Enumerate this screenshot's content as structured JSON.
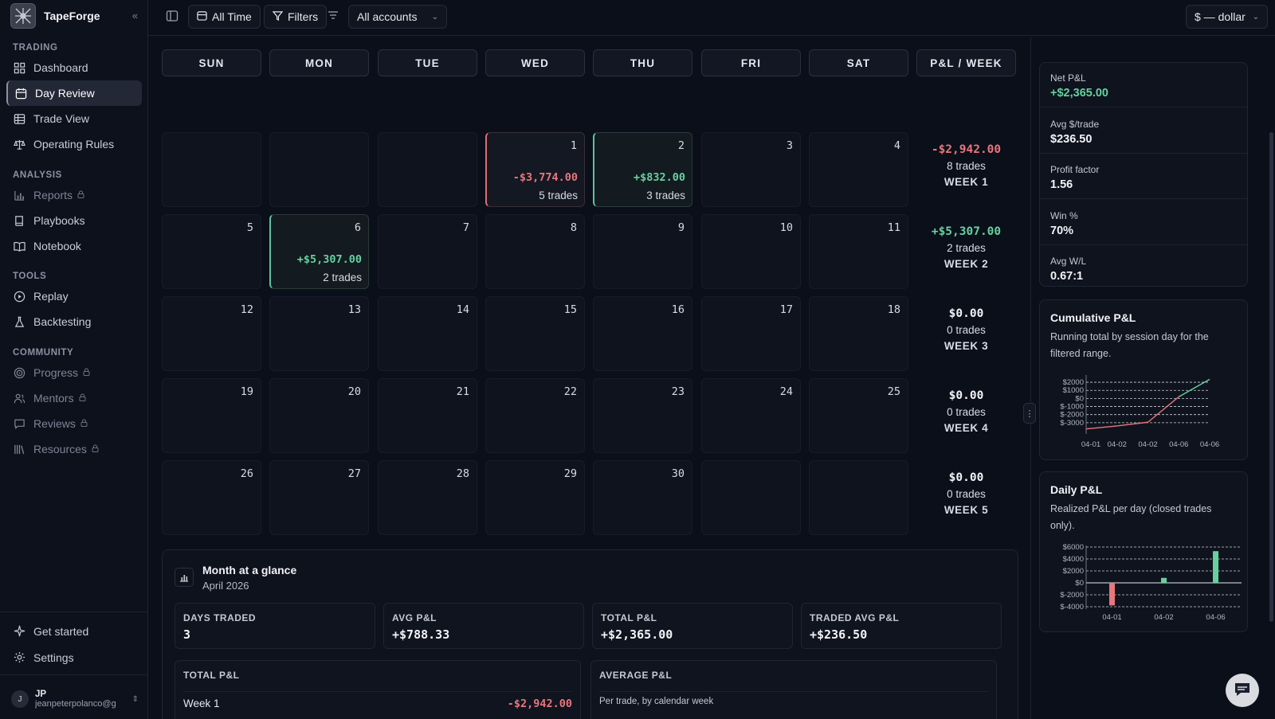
{
  "brand": {
    "name": "TapeForge"
  },
  "sidebar": {
    "sections": [
      {
        "heading": "TRADING",
        "items": [
          {
            "label": "Dashboard",
            "icon": "grid-icon",
            "locked": false,
            "active": false
          },
          {
            "label": "Day Review",
            "icon": "calendar-icon",
            "locked": false,
            "active": true
          },
          {
            "label": "Trade View",
            "icon": "table-icon",
            "locked": false,
            "active": false
          },
          {
            "label": "Operating Rules",
            "icon": "scale-icon",
            "locked": false,
            "active": false
          }
        ]
      },
      {
        "heading": "ANALYSIS",
        "items": [
          {
            "label": "Reports",
            "icon": "bar-chart-icon",
            "locked": true,
            "active": false
          },
          {
            "label": "Playbooks",
            "icon": "book-icon",
            "locked": false,
            "active": false
          },
          {
            "label": "Notebook",
            "icon": "open-book-icon",
            "locked": false,
            "active": false
          }
        ]
      },
      {
        "heading": "TOOLS",
        "items": [
          {
            "label": "Replay",
            "icon": "play-circle-icon",
            "locked": false,
            "active": false
          },
          {
            "label": "Backtesting",
            "icon": "flask-icon",
            "locked": false,
            "active": false
          }
        ]
      },
      {
        "heading": "COMMUNITY",
        "items": [
          {
            "label": "Progress",
            "icon": "target-icon",
            "locked": true,
            "active": false
          },
          {
            "label": "Mentors",
            "icon": "users-icon",
            "locked": true,
            "active": false
          },
          {
            "label": "Reviews",
            "icon": "message-icon",
            "locked": true,
            "active": false
          },
          {
            "label": "Resources",
            "icon": "library-icon",
            "locked": true,
            "active": false
          }
        ]
      }
    ],
    "footer": [
      {
        "label": "Get started",
        "icon": "sparkle-icon"
      },
      {
        "label": "Settings",
        "icon": "gear-icon"
      }
    ],
    "user": {
      "avatar": "J",
      "initials": "JP",
      "email": "jeanpeterpolanco@g"
    }
  },
  "topbar": {
    "range_label": "All Time",
    "filters_label": "Filters",
    "accounts_label": "All accounts",
    "currency_label": "$ — dollar"
  },
  "calendar": {
    "weekdays": [
      "SUN",
      "MON",
      "TUE",
      "WED",
      "THU",
      "FRI",
      "SAT"
    ],
    "week_header": "P&L / WEEK",
    "weeks": [
      {
        "days": [
          {
            "num": "",
            "pnl": "",
            "trades": "",
            "state": "empty"
          },
          {
            "num": "",
            "pnl": "",
            "trades": "",
            "state": "empty"
          },
          {
            "num": "",
            "pnl": "",
            "trades": "",
            "state": "empty"
          },
          {
            "num": "1",
            "pnl": "-$3,774.00",
            "trades": "5 trades",
            "state": "loss"
          },
          {
            "num": "2",
            "pnl": "+$832.00",
            "trades": "3 trades",
            "state": "win"
          },
          {
            "num": "3",
            "pnl": "",
            "trades": "",
            "state": "none"
          },
          {
            "num": "4",
            "pnl": "",
            "trades": "",
            "state": "none"
          }
        ],
        "summary": {
          "pnl": "-$2,942.00",
          "trades": "8 trades",
          "label": "WEEK 1",
          "state": "loss"
        }
      },
      {
        "days": [
          {
            "num": "5",
            "pnl": "",
            "trades": "",
            "state": "none"
          },
          {
            "num": "6",
            "pnl": "+$5,307.00",
            "trades": "2 trades",
            "state": "win"
          },
          {
            "num": "7",
            "pnl": "",
            "trades": "",
            "state": "none"
          },
          {
            "num": "8",
            "pnl": "",
            "trades": "",
            "state": "none"
          },
          {
            "num": "9",
            "pnl": "",
            "trades": "",
            "state": "none"
          },
          {
            "num": "10",
            "pnl": "",
            "trades": "",
            "state": "none"
          },
          {
            "num": "11",
            "pnl": "",
            "trades": "",
            "state": "none"
          }
        ],
        "summary": {
          "pnl": "+$5,307.00",
          "trades": "2 trades",
          "label": "WEEK 2",
          "state": "win"
        }
      },
      {
        "days": [
          {
            "num": "12",
            "pnl": "",
            "trades": "",
            "state": "none"
          },
          {
            "num": "13",
            "pnl": "",
            "trades": "",
            "state": "none"
          },
          {
            "num": "14",
            "pnl": "",
            "trades": "",
            "state": "none"
          },
          {
            "num": "15",
            "pnl": "",
            "trades": "",
            "state": "none"
          },
          {
            "num": "16",
            "pnl": "",
            "trades": "",
            "state": "none"
          },
          {
            "num": "17",
            "pnl": "",
            "trades": "",
            "state": "none"
          },
          {
            "num": "18",
            "pnl": "",
            "trades": "",
            "state": "none"
          }
        ],
        "summary": {
          "pnl": "$0.00",
          "trades": "0 trades",
          "label": "WEEK 3",
          "state": "flat"
        }
      },
      {
        "days": [
          {
            "num": "19",
            "pnl": "",
            "trades": "",
            "state": "none"
          },
          {
            "num": "20",
            "pnl": "",
            "trades": "",
            "state": "none"
          },
          {
            "num": "21",
            "pnl": "",
            "trades": "",
            "state": "none"
          },
          {
            "num": "22",
            "pnl": "",
            "trades": "",
            "state": "none"
          },
          {
            "num": "23",
            "pnl": "",
            "trades": "",
            "state": "none"
          },
          {
            "num": "24",
            "pnl": "",
            "trades": "",
            "state": "none"
          },
          {
            "num": "25",
            "pnl": "",
            "trades": "",
            "state": "none"
          }
        ],
        "summary": {
          "pnl": "$0.00",
          "trades": "0 trades",
          "label": "WEEK 4",
          "state": "flat"
        }
      },
      {
        "days": [
          {
            "num": "26",
            "pnl": "",
            "trades": "",
            "state": "none"
          },
          {
            "num": "27",
            "pnl": "",
            "trades": "",
            "state": "none"
          },
          {
            "num": "28",
            "pnl": "",
            "trades": "",
            "state": "none"
          },
          {
            "num": "29",
            "pnl": "",
            "trades": "",
            "state": "none"
          },
          {
            "num": "30",
            "pnl": "",
            "trades": "",
            "state": "none"
          },
          {
            "num": "",
            "pnl": "",
            "trades": "",
            "state": "empty"
          },
          {
            "num": "",
            "pnl": "",
            "trades": "",
            "state": "empty"
          }
        ],
        "summary": {
          "pnl": "$0.00",
          "trades": "0 trades",
          "label": "WEEK 5",
          "state": "flat"
        }
      }
    ]
  },
  "glance": {
    "title": "Month at a glance",
    "subtitle": "April 2026",
    "stats": [
      {
        "label": "DAYS TRADED",
        "value": "3"
      },
      {
        "label": "AVG P&L",
        "value": "+$788.33"
      },
      {
        "label": "TOTAL P&L",
        "value": "+$2,365.00"
      },
      {
        "label": "TRADED AVG P&L",
        "value": "+$236.50"
      }
    ],
    "total_box": {
      "label": "TOTAL P&L",
      "row_label": "Week 1",
      "row_value": "-$2,942.00"
    },
    "avg_box": {
      "label": "AVERAGE P&L",
      "desc": "Per trade, by calendar week"
    }
  },
  "metrics": [
    {
      "label": "Net P&L",
      "value": "+$2,365.00",
      "state": "win"
    },
    {
      "label": "Avg $/trade",
      "value": "$236.50",
      "state": "flat"
    },
    {
      "label": "Profit factor",
      "value": "1.56",
      "state": "flat"
    },
    {
      "label": "Win %",
      "value": "70%",
      "state": "flat"
    },
    {
      "label": "Avg W/L",
      "value": "0.67:1",
      "state": "flat"
    }
  ],
  "colors": {
    "loss": "#e8767c",
    "win": "#66d19e",
    "flat": "#f2f3f6"
  },
  "cumulative": {
    "title": "Cumulative P&L",
    "desc": "Running total by session day for the filtered range."
  },
  "daily": {
    "title": "Daily P&L",
    "desc": "Realized P&L per day (closed trades only)."
  },
  "chart_data": [
    {
      "type": "line",
      "title": "Cumulative P&L",
      "x": [
        "04-01",
        "04-02",
        "04-02",
        "04-06",
        "04-06"
      ],
      "y_ticks": [
        "$2000",
        "$1000",
        "$0",
        "$-1000",
        "$-2000",
        "$-3000"
      ],
      "ylim": [
        -4000,
        2500
      ],
      "points": [
        -3774,
        -3400,
        -2942,
        200,
        2365
      ],
      "grid": true,
      "legend": "none"
    },
    {
      "type": "bar",
      "title": "Daily P&L",
      "categories": [
        "04-01",
        "04-02",
        "04-06"
      ],
      "values": [
        -3774,
        832,
        5307
      ],
      "y_ticks": [
        "$6000",
        "$4000",
        "$2000",
        "$0",
        "$-2000",
        "$-4000"
      ],
      "ylim": [
        -4000,
        6000
      ],
      "grid": true,
      "legend": "none"
    }
  ]
}
